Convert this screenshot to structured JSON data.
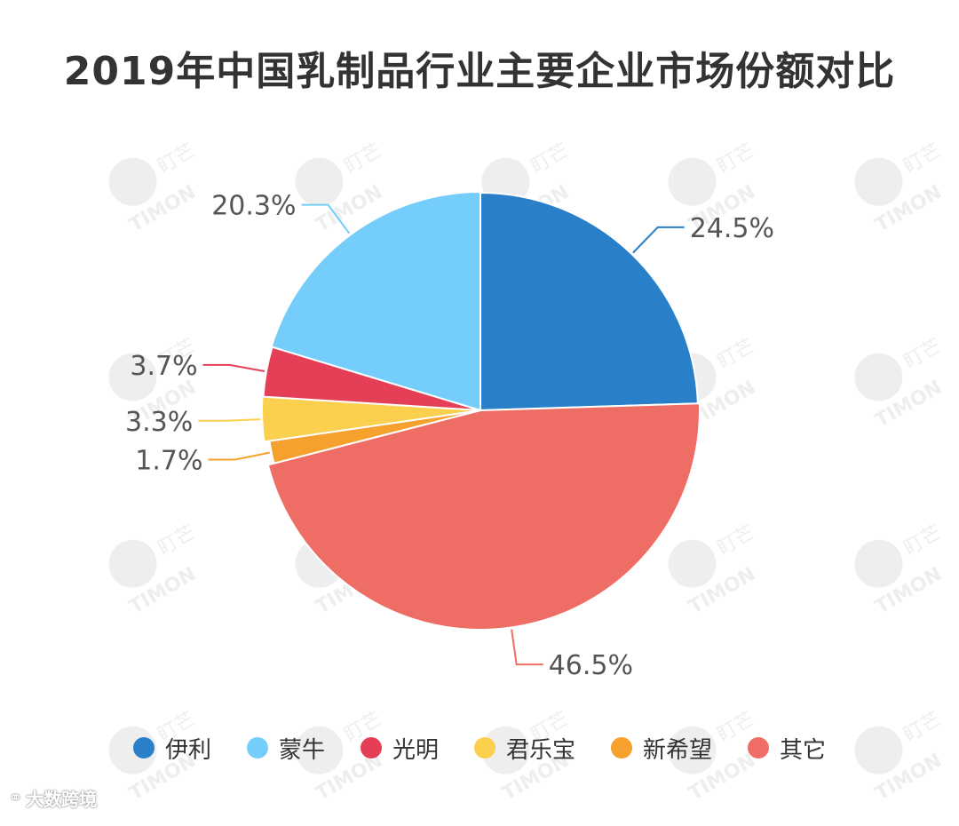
{
  "watermark": {
    "brand_cn": "盯芒",
    "brand_en": "TIMON"
  },
  "footer": {
    "brand": "大数跨境"
  },
  "chart_data": {
    "type": "pie",
    "title": "2019年中国乳制品行业主要企业市场份额对比",
    "slices": [
      {
        "label": "伊利",
        "value": 24.5,
        "value_label": "24.5%",
        "color": "#2a80c8"
      },
      {
        "label": "其它",
        "value": 46.5,
        "value_label": "46.5%",
        "color": "#ee6e66"
      },
      {
        "label": "新希望",
        "value": 1.7,
        "value_label": "1.7%",
        "color": "#f6a02d"
      },
      {
        "label": "君乐宝",
        "value": 3.3,
        "value_label": "3.3%",
        "color": "#fbd04e"
      },
      {
        "label": "光明",
        "value": 3.7,
        "value_label": "3.7%",
        "color": "#e53f57"
      },
      {
        "label": "蒙牛",
        "value": 20.3,
        "value_label": "20.3%",
        "color": "#74cdfb"
      }
    ],
    "legend": {
      "placement": "bottom",
      "order": [
        "伊利",
        "蒙牛",
        "光明",
        "君乐宝",
        "新希望",
        "其它"
      ]
    }
  }
}
